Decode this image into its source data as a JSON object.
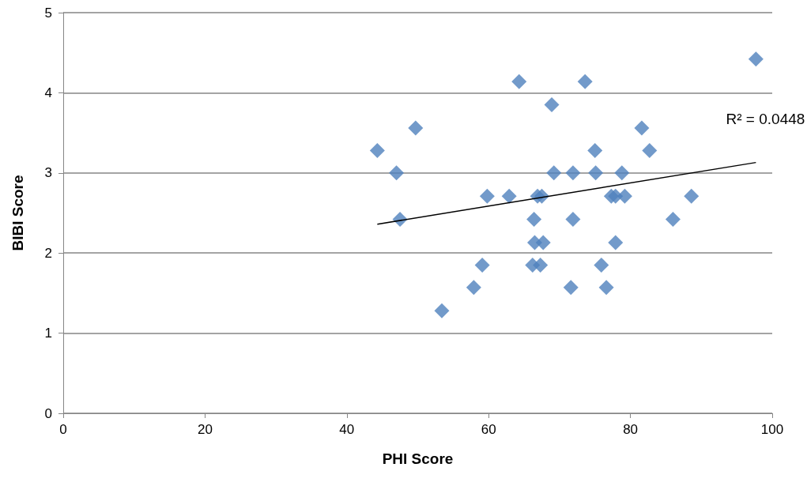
{
  "chart_data": {
    "type": "scatter",
    "xlabel": "PHI Score",
    "ylabel": "BIBI Score",
    "xlim": [
      0,
      100
    ],
    "xticks": [
      0,
      20,
      40,
      60,
      80,
      100
    ],
    "ylim": [
      0,
      5
    ],
    "yticks": [
      0,
      1,
      2,
      3,
      4,
      5
    ],
    "grid": "y",
    "marker": "diamond",
    "series": [
      {
        "color": "#4f81bd",
        "x": [
          64.3,
          68.9,
          49.7,
          44.3,
          47.0,
          69.2,
          71.9,
          59.8,
          62.9,
          66.9,
          67.5,
          47.5,
          66.4,
          71.9,
          66.5,
          67.7,
          59.1,
          66.2,
          67.3,
          57.9,
          71.6,
          53.4,
          97.7,
          73.6,
          81.6,
          75.0,
          82.7,
          75.1,
          78.8,
          77.3,
          77.9,
          79.2,
          88.6,
          86.0,
          77.9,
          75.9,
          76.6
        ],
        "values": [
          4.14,
          3.85,
          3.56,
          3.28,
          3.0,
          3.0,
          3.0,
          2.71,
          2.71,
          2.71,
          2.71,
          2.42,
          2.42,
          2.42,
          2.13,
          2.13,
          1.85,
          1.85,
          1.85,
          1.57,
          1.57,
          1.28,
          4.42,
          4.14,
          3.56,
          3.28,
          3.28,
          3.0,
          3.0,
          2.71,
          2.71,
          2.71,
          2.71,
          2.42,
          2.13,
          1.85,
          1.57
        ]
      },
      {
        "type": "line",
        "color": "#000000",
        "marker": "none",
        "x": [
          44.3,
          97.7
        ],
        "values": [
          2.36,
          3.13
        ]
      }
    ],
    "annotations": [
      {
        "text": "R² = 0.0448",
        "x": 97.7,
        "y": 3.13
      }
    ]
  }
}
